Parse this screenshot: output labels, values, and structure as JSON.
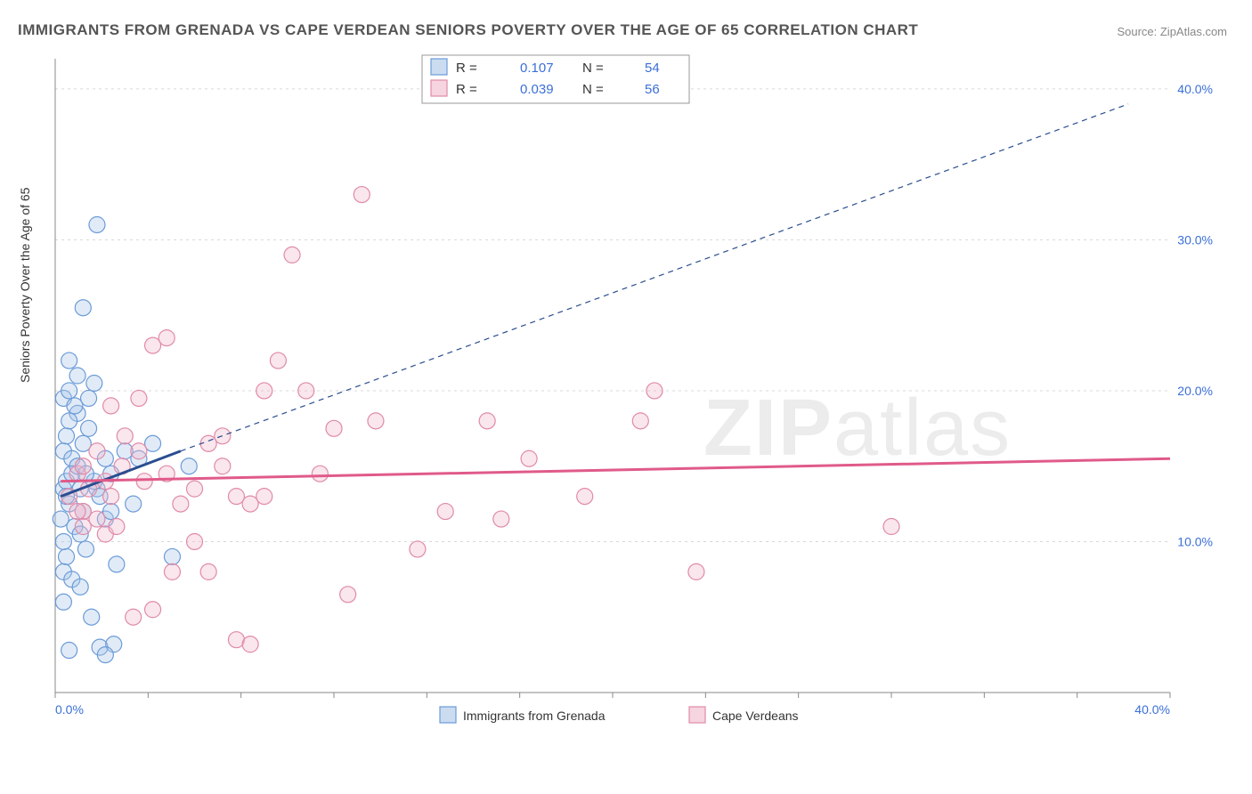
{
  "title": "IMMIGRANTS FROM GRENADA VS CAPE VERDEAN SENIORS POVERTY OVER THE AGE OF 65 CORRELATION CHART",
  "source": "Source: ZipAtlas.com",
  "ylabel": "Seniors Poverty Over the Age of 65",
  "watermark": "ZIPatlas",
  "chart": {
    "type": "scatter",
    "background_color": "#ffffff",
    "grid_color": "#d8d8d8",
    "axis_color": "#888888",
    "tick_label_color": "#3b6fd8",
    "tick_fontsize": 14,
    "label_fontsize": 14,
    "title_fontsize": 17,
    "xlim": [
      0,
      40
    ],
    "ylim": [
      0,
      42
    ],
    "x_ticks": [
      0,
      10,
      20,
      30,
      40
    ],
    "x_tick_labels": [
      "0.0%",
      "",
      "",
      "",
      "40.0%"
    ],
    "y_ticks": [
      10,
      20,
      30,
      40
    ],
    "y_tick_labels": [
      "10.0%",
      "20.0%",
      "30.0%",
      "40.0%"
    ],
    "marker_radius": 9,
    "marker_stroke_width": 1.2,
    "marker_fill_opacity": 0.35,
    "series": [
      {
        "name": "Immigrants from Grenada",
        "color": "#6b9bd8",
        "fill": "#a8c5e8",
        "r_value": "0.107",
        "n_value": "54",
        "trend": {
          "x1": 0.2,
          "y1": 13.0,
          "x2": 4.5,
          "y2": 16.0,
          "dashed_to_x": 38.5,
          "dashed_to_y": 39.0
        },
        "points": [
          [
            0.3,
            13.5
          ],
          [
            0.4,
            14.0
          ],
          [
            0.5,
            12.5
          ],
          [
            0.3,
            16.0
          ],
          [
            0.6,
            15.5
          ],
          [
            0.4,
            17.0
          ],
          [
            0.8,
            18.5
          ],
          [
            0.3,
            19.5
          ],
          [
            0.5,
            20.0
          ],
          [
            1.2,
            19.5
          ],
          [
            1.4,
            20.5
          ],
          [
            0.7,
            11.0
          ],
          [
            0.9,
            10.5
          ],
          [
            0.4,
            9.0
          ],
          [
            1.1,
            9.5
          ],
          [
            0.3,
            8.0
          ],
          [
            0.6,
            7.5
          ],
          [
            0.9,
            7.0
          ],
          [
            1.3,
            5.0
          ],
          [
            1.6,
            3.0
          ],
          [
            2.1,
            3.2
          ],
          [
            1.8,
            2.5
          ],
          [
            0.5,
            2.8
          ],
          [
            0.3,
            6.0
          ],
          [
            1.0,
            12.0
          ],
          [
            1.5,
            13.5
          ],
          [
            2.0,
            14.5
          ],
          [
            2.5,
            16.0
          ],
          [
            3.0,
            15.5
          ],
          [
            1.8,
            11.5
          ],
          [
            2.2,
            8.5
          ],
          [
            2.8,
            12.5
          ],
          [
            3.5,
            16.5
          ],
          [
            4.2,
            9.0
          ],
          [
            4.8,
            15.0
          ],
          [
            1.0,
            25.5
          ],
          [
            0.8,
            21.0
          ],
          [
            0.5,
            22.0
          ],
          [
            1.5,
            31.0
          ],
          [
            0.4,
            13.0
          ],
          [
            0.6,
            14.5
          ],
          [
            0.8,
            15.0
          ],
          [
            1.0,
            16.5
          ],
          [
            1.2,
            17.5
          ],
          [
            1.4,
            14.0
          ],
          [
            1.6,
            13.0
          ],
          [
            1.8,
            15.5
          ],
          [
            2.0,
            12.0
          ],
          [
            0.2,
            11.5
          ],
          [
            0.3,
            10.0
          ],
          [
            0.5,
            18.0
          ],
          [
            0.7,
            19.0
          ],
          [
            0.9,
            13.5
          ],
          [
            1.1,
            14.5
          ]
        ]
      },
      {
        "name": "Cape Verdeans",
        "color": "#e08aa8",
        "fill": "#f0b8cc",
        "r_value": "0.039",
        "n_value": "56",
        "trend": {
          "x1": 0.2,
          "y1": 14.0,
          "x2": 40.0,
          "y2": 15.5,
          "dashed_to_x": null,
          "dashed_to_y": null
        },
        "points": [
          [
            1.0,
            12.0
          ],
          [
            1.5,
            11.5
          ],
          [
            2.0,
            13.0
          ],
          [
            2.5,
            17.0
          ],
          [
            3.0,
            19.5
          ],
          [
            3.5,
            23.0
          ],
          [
            4.0,
            23.5
          ],
          [
            3.2,
            14.0
          ],
          [
            4.5,
            12.5
          ],
          [
            5.0,
            10.0
          ],
          [
            5.5,
            8.0
          ],
          [
            6.0,
            17.0
          ],
          [
            6.5,
            13.0
          ],
          [
            7.0,
            12.5
          ],
          [
            7.5,
            20.0
          ],
          [
            8.0,
            22.0
          ],
          [
            8.5,
            29.0
          ],
          [
            9.0,
            20.0
          ],
          [
            9.5,
            14.5
          ],
          [
            10.0,
            17.5
          ],
          [
            10.5,
            6.5
          ],
          [
            11.0,
            33.0
          ],
          [
            11.5,
            18.0
          ],
          [
            13.0,
            9.5
          ],
          [
            14.0,
            12.0
          ],
          [
            15.5,
            18.0
          ],
          [
            16.0,
            11.5
          ],
          [
            17.0,
            15.5
          ],
          [
            19.0,
            13.0
          ],
          [
            21.0,
            18.0
          ],
          [
            21.5,
            20.0
          ],
          [
            23.0,
            8.0
          ],
          [
            30.0,
            11.0
          ],
          [
            2.8,
            5.0
          ],
          [
            3.5,
            5.5
          ],
          [
            4.2,
            8.0
          ],
          [
            1.8,
            10.5
          ],
          [
            2.2,
            11.0
          ],
          [
            6.5,
            3.5
          ],
          [
            7.0,
            3.2
          ],
          [
            1.2,
            13.5
          ],
          [
            1.8,
            14.0
          ],
          [
            2.4,
            15.0
          ],
          [
            3.0,
            16.0
          ],
          [
            2.0,
            19.0
          ],
          [
            4.0,
            14.5
          ],
          [
            5.0,
            13.5
          ],
          [
            5.5,
            16.5
          ],
          [
            6.0,
            15.0
          ],
          [
            7.5,
            13.0
          ],
          [
            0.8,
            14.5
          ],
          [
            1.0,
            15.0
          ],
          [
            1.5,
            16.0
          ],
          [
            0.5,
            13.0
          ],
          [
            0.8,
            12.0
          ],
          [
            1.0,
            11.0
          ]
        ]
      }
    ],
    "legend_top": {
      "r_label": "R =",
      "n_label": "N ="
    },
    "legend_bottom_labels": [
      "Immigrants from Grenada",
      "Cape Verdeans"
    ]
  }
}
